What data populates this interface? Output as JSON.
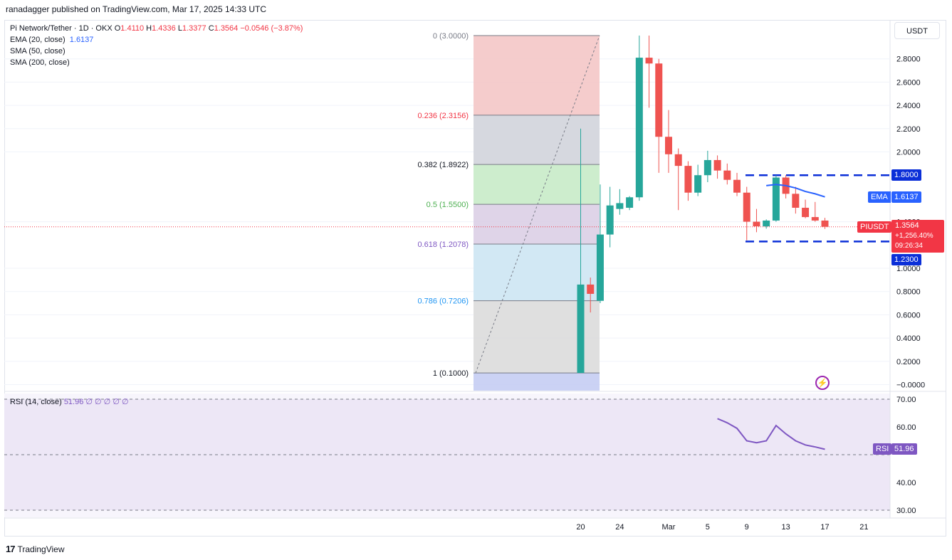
{
  "header": {
    "publisher": "ranadagger published on TradingView.com, Mar 17, 2025 14:33 UTC"
  },
  "legend": {
    "symbol": "Pi Network/Tether · 1D · OKX",
    "o_label": "O",
    "o": "1.4110",
    "h_label": "H",
    "h": "1.4336",
    "l_label": "L",
    "l": "1.3377",
    "c_label": "C",
    "c": "1.3564",
    "change": "−0.0546 (−3.87%)",
    "ema_label": "EMA (20, close)",
    "ema_value": "1.6137",
    "sma50_label": "SMA (50, close)",
    "sma200_label": "SMA (200, close)",
    "rsi_label": "RSI (14, close)",
    "rsi_value": "51.96",
    "rsi_extra": "∅ ∅ ∅ ∅ ∅"
  },
  "price_axis": {
    "currency": "USDT",
    "ticks": [
      "2.8000",
      "2.6000",
      "2.4000",
      "2.2000",
      "2.0000",
      "1.4000",
      "1.0000",
      "0.8000",
      "0.6000",
      "0.4000",
      "0.2000",
      "−0.0000"
    ]
  },
  "rsi_axis": {
    "ticks": [
      "70.00",
      "60.00",
      "40.00",
      "30.00"
    ]
  },
  "time_axis": {
    "ticks": [
      "20",
      "24",
      "Mar",
      "5",
      "9",
      "13",
      "17",
      "21"
    ]
  },
  "tags": {
    "resistance": "1.8000",
    "support": "1.2300",
    "ema_name": "EMA",
    "ema_value": "1.6137",
    "sym_name": "PIUSDT",
    "sym_price": "1.3564",
    "sym_change": "+1,256.40%",
    "sym_timer": "09:26:34",
    "rsi_name": "RSI",
    "rsi_value": "51.96"
  },
  "fib_labels": [
    "0 (3.0000)",
    "0.236 (2.3156)",
    "0.382 (1.8922)",
    "0.5 (1.5500)",
    "0.618 (1.2078)",
    "0.786 (0.7206)",
    "1 (0.1000)"
  ],
  "colors": {
    "up": "#26a69a",
    "down": "#ef5350",
    "ema": "#2962ff",
    "rsi": "#7e57c2",
    "level_line": "#0b2fd8"
  },
  "footer": {
    "brand": "TradingView"
  },
  "chart_data": {
    "type": "candlestick",
    "title": "Pi Network/Tether · 1D · OKX",
    "y_axis_unit": "USDT",
    "ylim": [
      -0.1,
      3.05
    ],
    "x_ticks": [
      "20",
      "24",
      "Mar",
      "5",
      "9",
      "13",
      "17",
      "21"
    ],
    "candles": [
      {
        "day": "Feb 20",
        "o": 0.1,
        "h": 2.2,
        "l": 0.1,
        "c": 0.86
      },
      {
        "day": "Feb 21",
        "o": 0.86,
        "h": 0.92,
        "l": 0.62,
        "c": 0.78
      },
      {
        "day": "Feb 22",
        "o": 0.72,
        "h": 1.72,
        "l": 0.7,
        "c": 1.29
      },
      {
        "day": "Feb 23",
        "o": 1.29,
        "h": 1.7,
        "l": 1.18,
        "c": 1.54
      },
      {
        "day": "Feb 24",
        "o": 1.51,
        "h": 1.68,
        "l": 1.46,
        "c": 1.56
      },
      {
        "day": "Feb 25",
        "o": 1.52,
        "h": 1.62,
        "l": 1.5,
        "c": 1.61
      },
      {
        "day": "Feb 26",
        "o": 1.61,
        "h": 3.0,
        "l": 1.58,
        "c": 2.81
      },
      {
        "day": "Feb 27",
        "o": 2.81,
        "h": 3.0,
        "l": 2.38,
        "c": 2.76
      },
      {
        "day": "Feb 28",
        "o": 2.76,
        "h": 2.8,
        "l": 1.82,
        "c": 2.13
      },
      {
        "day": "Mar 1",
        "o": 2.13,
        "h": 2.36,
        "l": 1.82,
        "c": 1.98
      },
      {
        "day": "Mar 2",
        "o": 1.98,
        "h": 2.03,
        "l": 1.5,
        "c": 1.88
      },
      {
        "day": "Mar 3",
        "o": 1.88,
        "h": 1.92,
        "l": 1.58,
        "c": 1.65
      },
      {
        "day": "Mar 4",
        "o": 1.65,
        "h": 1.89,
        "l": 1.62,
        "c": 1.8
      },
      {
        "day": "Mar 5",
        "o": 1.8,
        "h": 2.01,
        "l": 1.74,
        "c": 1.93
      },
      {
        "day": "Mar 6",
        "o": 1.93,
        "h": 1.97,
        "l": 1.77,
        "c": 1.84
      },
      {
        "day": "Mar 7",
        "o": 1.84,
        "h": 1.9,
        "l": 1.72,
        "c": 1.76
      },
      {
        "day": "Mar 8",
        "o": 1.76,
        "h": 1.82,
        "l": 1.62,
        "c": 1.65
      },
      {
        "day": "Mar 9",
        "o": 1.65,
        "h": 1.7,
        "l": 1.24,
        "c": 1.4
      },
      {
        "day": "Mar 10",
        "o": 1.4,
        "h": 1.51,
        "l": 1.31,
        "c": 1.36
      },
      {
        "day": "Mar 11",
        "o": 1.36,
        "h": 1.42,
        "l": 1.34,
        "c": 1.41
      },
      {
        "day": "Mar 12",
        "o": 1.41,
        "h": 1.8,
        "l": 1.4,
        "c": 1.78
      },
      {
        "day": "Mar 13",
        "o": 1.78,
        "h": 1.8,
        "l": 1.6,
        "c": 1.64
      },
      {
        "day": "Mar 14",
        "o": 1.64,
        "h": 1.7,
        "l": 1.47,
        "c": 1.52
      },
      {
        "day": "Mar 15",
        "o": 1.52,
        "h": 1.59,
        "l": 1.43,
        "c": 1.44
      },
      {
        "day": "Mar 16",
        "o": 1.44,
        "h": 1.57,
        "l": 1.4,
        "c": 1.41
      },
      {
        "day": "Mar 17",
        "o": 1.41,
        "h": 1.4336,
        "l": 1.3377,
        "c": 1.3564
      }
    ],
    "ema20": [
      {
        "day": "Mar 11",
        "v": 1.71
      },
      {
        "day": "Mar 12",
        "v": 1.72
      },
      {
        "day": "Mar 13",
        "v": 1.71
      },
      {
        "day": "Mar 14",
        "v": 1.69
      },
      {
        "day": "Mar 15",
        "v": 1.66
      },
      {
        "day": "Mar 16",
        "v": 1.64
      },
      {
        "day": "Mar 17",
        "v": 1.6137
      }
    ],
    "horizontal_levels": [
      1.8,
      1.23
    ],
    "fibonacci": [
      {
        "ratio": "0",
        "price": 3.0,
        "fill": "#f4c7c7"
      },
      {
        "ratio": "0.236",
        "price": 2.3156,
        "fill": "#d1d4dc"
      },
      {
        "ratio": "0.382",
        "price": 1.8922,
        "fill": "#c8ebc8"
      },
      {
        "ratio": "0.5",
        "price": 1.55,
        "fill": "#dccfe6"
      },
      {
        "ratio": "0.618",
        "price": 1.2078,
        "fill": "#cde6f3"
      },
      {
        "ratio": "0.786",
        "price": 0.7206,
        "fill": "#dcdcdc"
      },
      {
        "ratio": "1",
        "price": 0.1,
        "fill": "#c5cdf3"
      }
    ],
    "rsi": {
      "ylim": [
        28,
        72
      ],
      "band": [
        30,
        70
      ],
      "points": [
        {
          "day": "Mar 6",
          "v": 63.0
        },
        {
          "day": "Mar 7",
          "v": 61.5
        },
        {
          "day": "Mar 8",
          "v": 59.5
        },
        {
          "day": "Mar 9",
          "v": 55.0
        },
        {
          "day": "Mar 10",
          "v": 54.3
        },
        {
          "day": "Mar 11",
          "v": 55.0
        },
        {
          "day": "Mar 12",
          "v": 60.5
        },
        {
          "day": "Mar 13",
          "v": 57.5
        },
        {
          "day": "Mar 14",
          "v": 55.0
        },
        {
          "day": "Mar 15",
          "v": 53.5
        },
        {
          "day": "Mar 16",
          "v": 52.8
        },
        {
          "day": "Mar 17",
          "v": 51.96
        }
      ]
    }
  }
}
